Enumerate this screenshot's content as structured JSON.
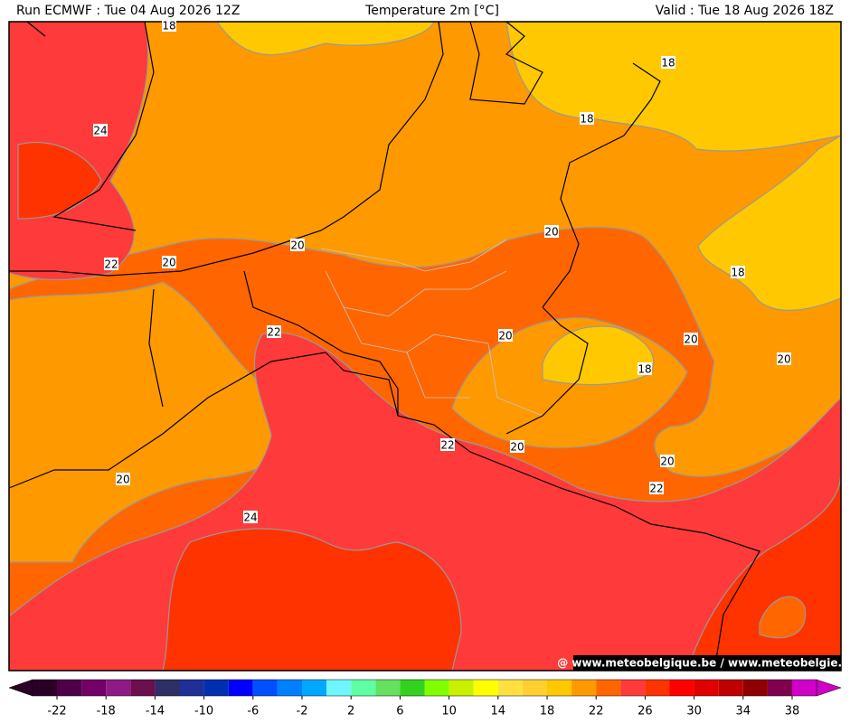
{
  "header": {
    "run": "Run ECMWF : Tue 04 Aug 2026 12Z",
    "title": "Temperature 2m [°C]",
    "valid": "Valid : Tue 18 Aug 2026 18Z"
  },
  "contour_labels": [
    "18",
    "18",
    "18",
    "24",
    "20",
    "20",
    "22",
    "20",
    "18",
    "22",
    "20",
    "20",
    "18",
    "20",
    "22",
    "20",
    "20",
    "22",
    "20",
    "24"
  ],
  "watermark": "@ www.meteobelgique.be / www.meteobelgie.be",
  "colorbar": {
    "colors": [
      "#2a0026",
      "#4d0046",
      "#730066",
      "#8f1a85",
      "#6b0f4f",
      "#2e2f66",
      "#1f2f96",
      "#0030b0",
      "#0000ff",
      "#0050ff",
      "#0080ff",
      "#00a8ff",
      "#6ef5ff",
      "#5effa0",
      "#66e060",
      "#33d21e",
      "#80ff00",
      "#c8f000",
      "#ffff00",
      "#ffe040",
      "#ffd030",
      "#ffc800",
      "#ff9900",
      "#ff6600",
      "#ff3a3a",
      "#ff3300",
      "#ff0000",
      "#e00000",
      "#c00000",
      "#900000",
      "#800050",
      "#d000c8"
    ],
    "ticks": [
      -22,
      -18,
      -14,
      -10,
      -6,
      -2,
      2,
      6,
      10,
      14,
      18,
      22,
      26,
      30,
      34,
      38
    ]
  }
}
